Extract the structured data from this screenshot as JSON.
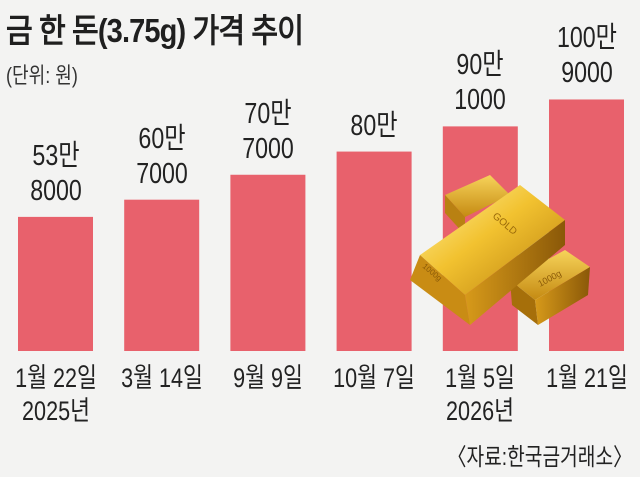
{
  "chart_data": {
    "type": "bar",
    "title": "금 한 돈(3.75g) 가격 추이",
    "subtitle": "(단위: 원)",
    "categories": [
      "1월 22일",
      "3월 14일",
      "9월 9일",
      "10월 7일",
      "1월 5일",
      "1월 21일"
    ],
    "year_labels": [
      "2025년",
      "",
      "",
      "",
      "2026년",
      ""
    ],
    "values": [
      538000,
      607000,
      707000,
      800000,
      901000,
      1009000
    ],
    "data_labels": [
      [
        "53만",
        "8000"
      ],
      [
        "60만",
        "7000"
      ],
      [
        "70만",
        "7000"
      ],
      [
        "80만",
        ""
      ],
      [
        "90만",
        "1000"
      ],
      [
        "100만",
        "9000"
      ]
    ],
    "ylim": [
      0,
      1400000
    ],
    "grid": false,
    "axes_visible": false,
    "bar_color": "#e8616c",
    "source": "〈자료:한국금거래소〉",
    "illustration": "gold-bars"
  }
}
